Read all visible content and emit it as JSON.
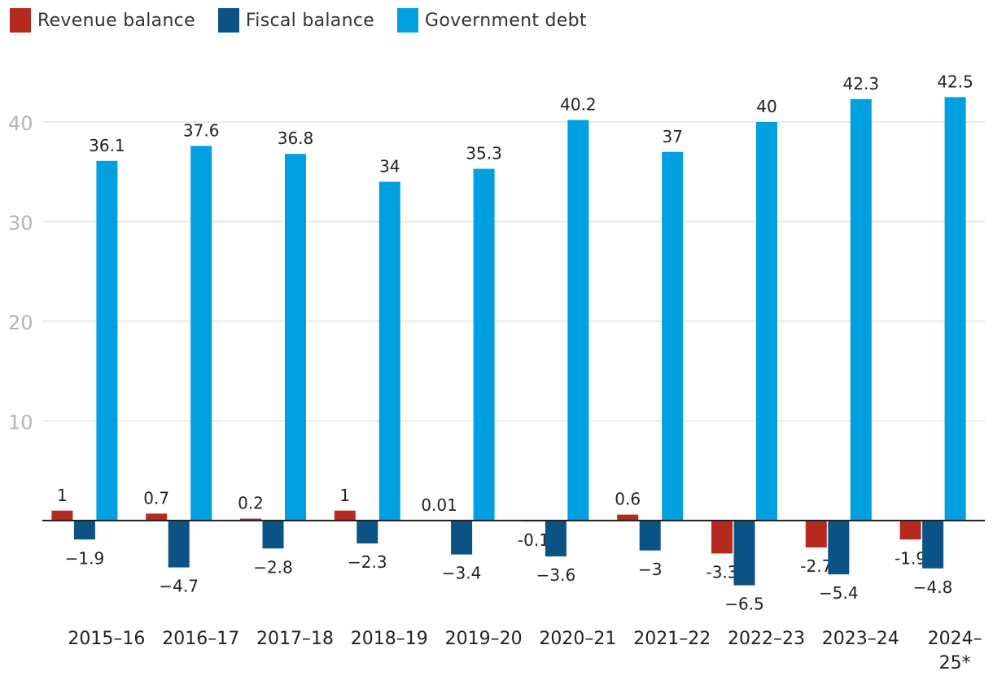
{
  "chart_data": {
    "type": "bar",
    "categories": [
      "2015-16",
      "2016-17",
      "2017-18",
      "2018-19",
      "2019-20",
      "2020-21",
      "2021-22",
      "2022-23",
      "2023-24",
      "2024-25*"
    ],
    "category_labels": [
      [
        "2015–16"
      ],
      [
        "2016–17"
      ],
      [
        "2017–18"
      ],
      [
        "2018–19"
      ],
      [
        "2019–20"
      ],
      [
        "2020–21"
      ],
      [
        "2021–22"
      ],
      [
        "2022–23"
      ],
      [
        "2023–24"
      ],
      [
        "2024–",
        "25*"
      ]
    ],
    "series": [
      {
        "name": "Revenue balance",
        "color": "#b52a1e",
        "values": [
          1,
          0.7,
          0.2,
          1,
          0.01,
          -0.1,
          0.6,
          -3.3,
          -2.7,
          -1.9
        ],
        "labels": [
          "1",
          "0.7",
          "0.2",
          "1",
          "0.01",
          "-0.1",
          "0.6",
          "-3.3",
          "-2.7",
          "-1.9"
        ]
      },
      {
        "name": "Fiscal balance",
        "color": "#0b5384",
        "values": [
          -1.9,
          -4.7,
          -2.8,
          -2.3,
          -3.4,
          -3.6,
          -3,
          -6.5,
          -5.4,
          -4.8
        ],
        "labels": [
          "−1.9",
          "−4.7",
          "−2.8",
          "−2.3",
          "−3.4",
          "−3.6",
          "−3",
          "−6.5",
          "−5.4",
          "−4.8"
        ]
      },
      {
        "name": "Government debt",
        "color": "#009fdf",
        "values": [
          36.1,
          37.6,
          36.8,
          34,
          35.3,
          40.2,
          37,
          40,
          42.3,
          42.5
        ],
        "labels": [
          "36.1",
          "37.6",
          "36.8",
          "34",
          "35.3",
          "40.2",
          "37",
          "40",
          "42.3",
          "42.5"
        ]
      }
    ],
    "y_ticks": [
      10,
      20,
      30,
      40
    ],
    "y_tick_labels": [
      "10",
      "20",
      "30",
      "40"
    ],
    "ylim": [
      -7,
      44
    ],
    "title": "",
    "xlabel": "",
    "ylabel": "",
    "grid": true,
    "legend_position": "top-left"
  }
}
